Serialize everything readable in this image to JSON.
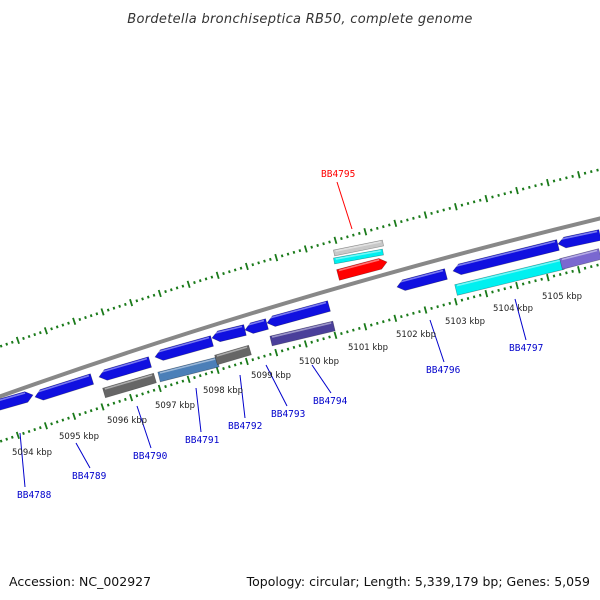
{
  "title": "Bordetella bronchiseptica RB50, complete genome",
  "footer": {
    "accession": "Accession: NC_002927",
    "topology": "Topology: circular; Length: 5,339,179 bp; Genes: 5,059"
  },
  "scale_labels": [
    {
      "id": "5094",
      "text": "5094 kbp"
    },
    {
      "id": "5095",
      "text": "5095 kbp"
    },
    {
      "id": "5096",
      "text": "5096 kbp"
    },
    {
      "id": "5097",
      "text": "5097 kbp"
    },
    {
      "id": "5098",
      "text": "5098 kbp"
    },
    {
      "id": "5099",
      "text": "5099 kbp"
    },
    {
      "id": "5100",
      "text": "5100 kbp"
    },
    {
      "id": "5101",
      "text": "5101 kbp"
    },
    {
      "id": "5102",
      "text": "5102 kbp"
    },
    {
      "id": "5103",
      "text": "5103 kbp"
    },
    {
      "id": "5104",
      "text": "5104 kbp"
    },
    {
      "id": "5105",
      "text": "5105 kbp"
    }
  ],
  "gene_labels": [
    {
      "id": "BB4788",
      "text": "BB4788",
      "color": "#0000cc"
    },
    {
      "id": "BB4789",
      "text": "BB4789",
      "color": "#0000cc"
    },
    {
      "id": "BB4790",
      "text": "BB4790",
      "color": "#0000cc"
    },
    {
      "id": "BB4791",
      "text": "BB4791",
      "color": "#0000cc"
    },
    {
      "id": "BB4792",
      "text": "BB4792",
      "color": "#0000cc"
    },
    {
      "id": "BB4793",
      "text": "BB4793",
      "color": "#0000cc"
    },
    {
      "id": "BB4794",
      "text": "BB4794",
      "color": "#0000cc"
    },
    {
      "id": "BB4795",
      "text": "BB4795",
      "color": "#ff0000"
    },
    {
      "id": "BB4796",
      "text": "BB4796",
      "color": "#0000cc"
    },
    {
      "id": "BB4797",
      "text": "BB4797",
      "color": "#0000cc"
    }
  ],
  "colors": {
    "backbone": "#888888",
    "tick": "#1a7a1a",
    "gene_blue": "#1010e0",
    "gene_red": "#ff0000",
    "gene_cyan": "#00f0f0",
    "gene_gray": "#666666",
    "gene_purple": "#4a3f9a",
    "gene_steel": "#4b7fb8",
    "gene_light_gray": "#c8c8c8",
    "gene_lavender": "#7a68d0"
  }
}
